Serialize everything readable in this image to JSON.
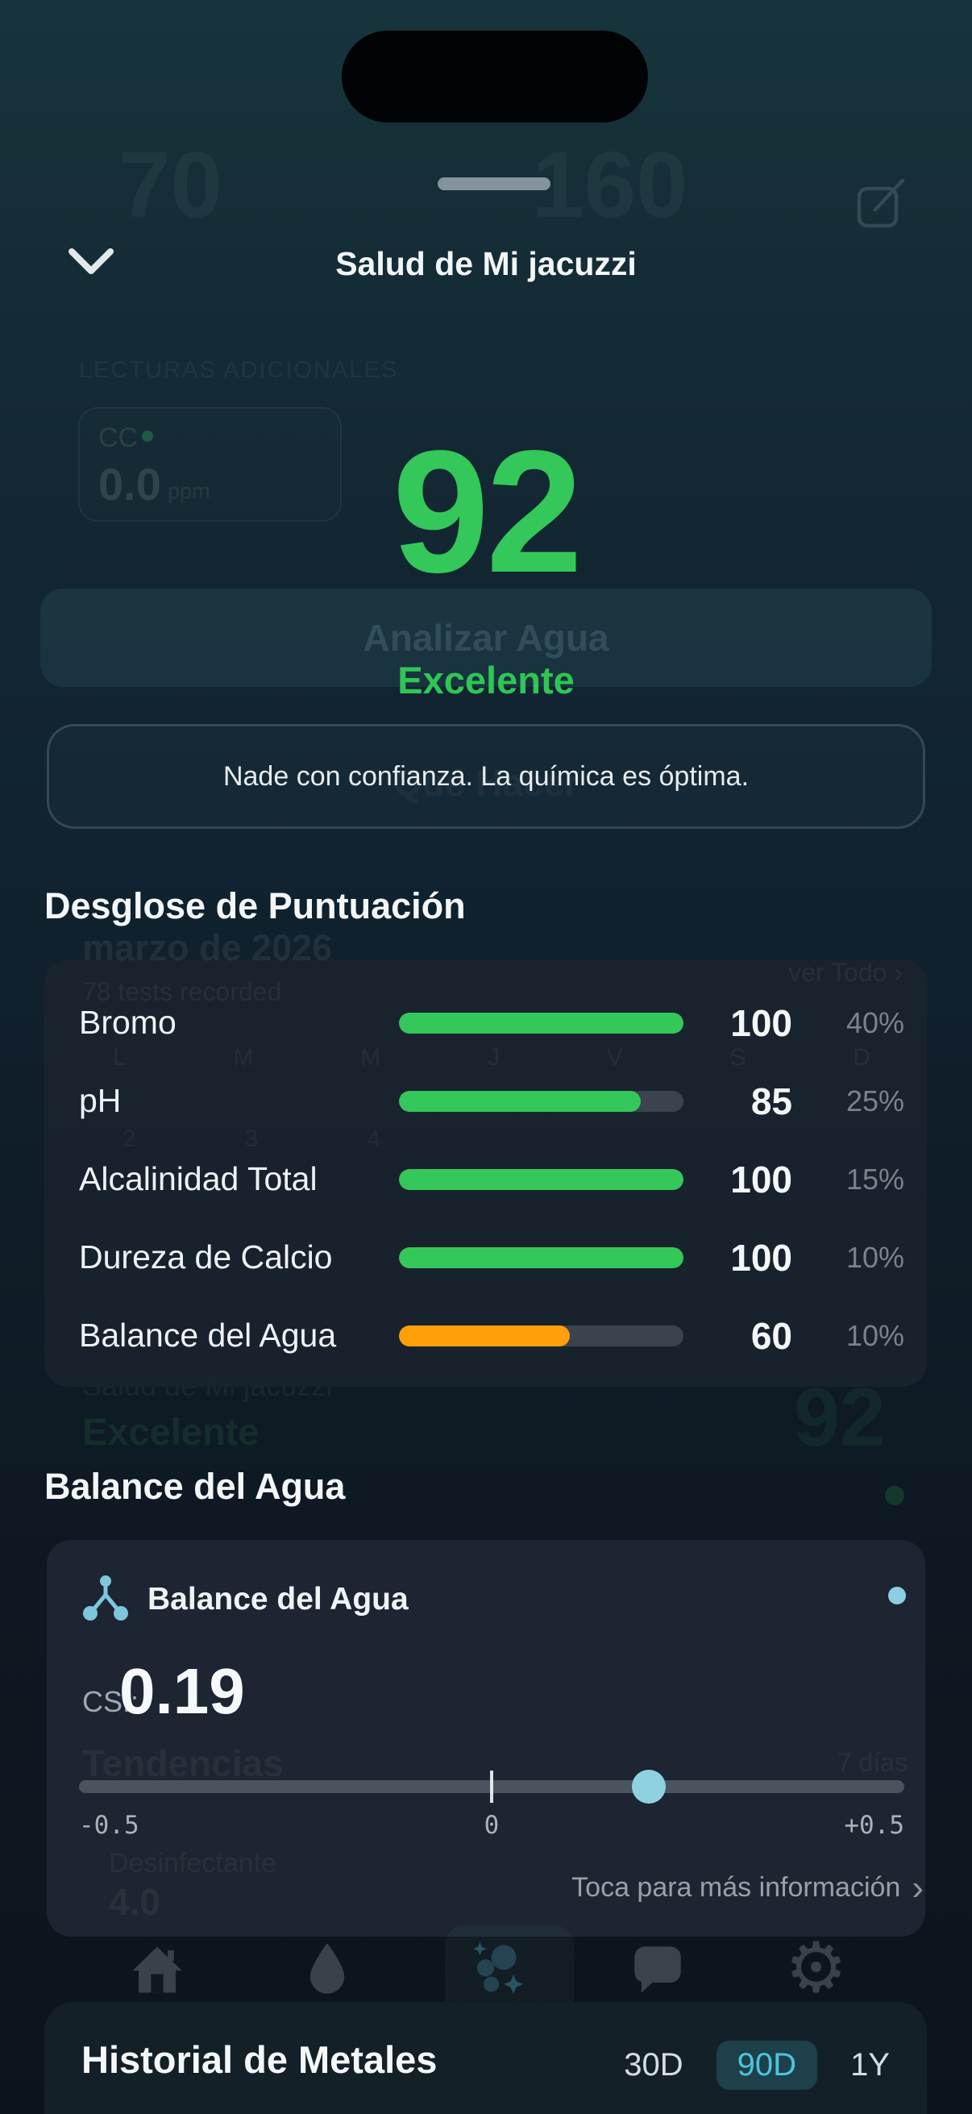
{
  "header": {
    "title": "Salud de Mi jacuzzi"
  },
  "score": {
    "value": "92",
    "status": "Excelente",
    "advice": "Nade con confianza. La química es óptima."
  },
  "breakdown": {
    "title": "Desglose de Puntuación",
    "rows": [
      {
        "label": "Bromo",
        "score": 100,
        "weight": "40%",
        "color": "#34c759"
      },
      {
        "label": "pH",
        "score": 85,
        "weight": "25%",
        "color": "#34c759"
      },
      {
        "label": "Alcalinidad Total",
        "score": 100,
        "weight": "15%",
        "color": "#34c759"
      },
      {
        "label": "Dureza de Calcio",
        "score": 100,
        "weight": "10%",
        "color": "#34c759"
      },
      {
        "label": "Balance del Agua",
        "score": 60,
        "weight": "10%",
        "color": "#ff9f0a"
      }
    ]
  },
  "balance": {
    "section_title": "Balance del Agua",
    "card_title": "Balance del Agua",
    "csi_label": "CSI:",
    "csi_value": "0.19",
    "slider": {
      "min": -0.5,
      "max": 0.5,
      "value": 0.19,
      "min_label": "-0.5",
      "mid_label": "0",
      "max_label": "+0.5"
    },
    "info_label": "Toca para más información",
    "chevron": "›"
  },
  "metals": {
    "title": "Historial de Metales",
    "ranges": [
      {
        "label": "30D",
        "active": false
      },
      {
        "label": "90D",
        "active": true
      },
      {
        "label": "1Y",
        "active": false
      }
    ]
  },
  "ghost": {
    "left_number": "70",
    "right_number": "160",
    "lecturas": "LECTURAS ADICIONALES",
    "cc_label": "CC",
    "cc_value": "0.0",
    "cc_unit": "ppm",
    "analizar": "Analizar Agua",
    "que_hacer": "Qué Hacer",
    "month": "marzo de 2026",
    "tests": "78 tests recorded",
    "ver_todo": "ver Todo ›",
    "weekdays": [
      "L",
      "M",
      "M",
      "J",
      "V",
      "S",
      "D"
    ],
    "daynums": [
      "2",
      "3",
      "4"
    ],
    "salud": "Salud de Mi jacuzzi",
    "excelente": "Excelente",
    "score": "92",
    "tendencias": "Tendencias",
    "dias": "7 días",
    "desinfectante": "Desinfectante",
    "desinfectante_value": "4.0"
  },
  "colors": {
    "green": "#34c759",
    "orange": "#ff9f0a",
    "cyan_accent": "#4cc4de",
    "thumb_blue": "#8ed2e2",
    "track_gray": "#4a545f"
  }
}
